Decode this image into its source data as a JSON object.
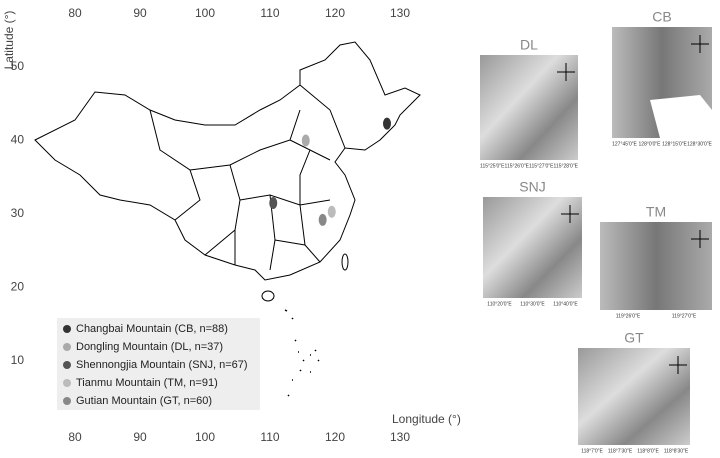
{
  "map": {
    "lon_ticks": [
      80,
      90,
      100,
      110,
      120,
      130
    ],
    "lat_ticks": [
      50,
      40,
      30,
      20,
      10
    ],
    "x_label": "Longitude (°)",
    "y_label": "Latitude (°)",
    "legend": [
      {
        "name": "Changbai Mountain (CB, n=88)",
        "color": "#333333"
      },
      {
        "name": "Dongling Mountain (DL, n=37)",
        "color": "#aaaaaa"
      },
      {
        "name": "Shennongjia Mountain (SNJ, n=67)",
        "color": "#555555"
      },
      {
        "name": "Tianmu Mountain (TM, n=91)",
        "color": "#bbbbbb"
      },
      {
        "name": "Gutian Mountain (GT, n=60)",
        "color": "#888888"
      }
    ],
    "sites": [
      {
        "lon": 128.0,
        "lat": 42.3
      },
      {
        "lon": 115.5,
        "lat": 40.0
      },
      {
        "lon": 110.5,
        "lat": 31.5
      },
      {
        "lon": 119.5,
        "lat": 30.3
      },
      {
        "lon": 118.1,
        "lat": 29.2
      }
    ],
    "insets": [
      {
        "title": "DL",
        "x_labels": [
          "115°25'0\"E",
          "115°26'0\"E",
          "115°27'0\"E",
          "115°28'0\"E"
        ]
      },
      {
        "title": "CB",
        "x_labels": [
          "127°45'0\"E",
          "128°0'0\"E",
          "128°15'0\"E",
          "128°30'0\"E"
        ]
      },
      {
        "title": "SNJ",
        "x_labels": [
          "110°20'0\"E",
          "110°30'0\"E",
          "110°40'0\"E"
        ]
      },
      {
        "title": "TM",
        "x_labels": [
          "119°26'0\"E",
          "119°27'0\"E"
        ]
      },
      {
        "title": "GT",
        "x_labels": [
          "118°7'0\"E",
          "118°7'30\"E",
          "118°8'0\"E",
          "118°8'30\"E"
        ]
      }
    ]
  }
}
